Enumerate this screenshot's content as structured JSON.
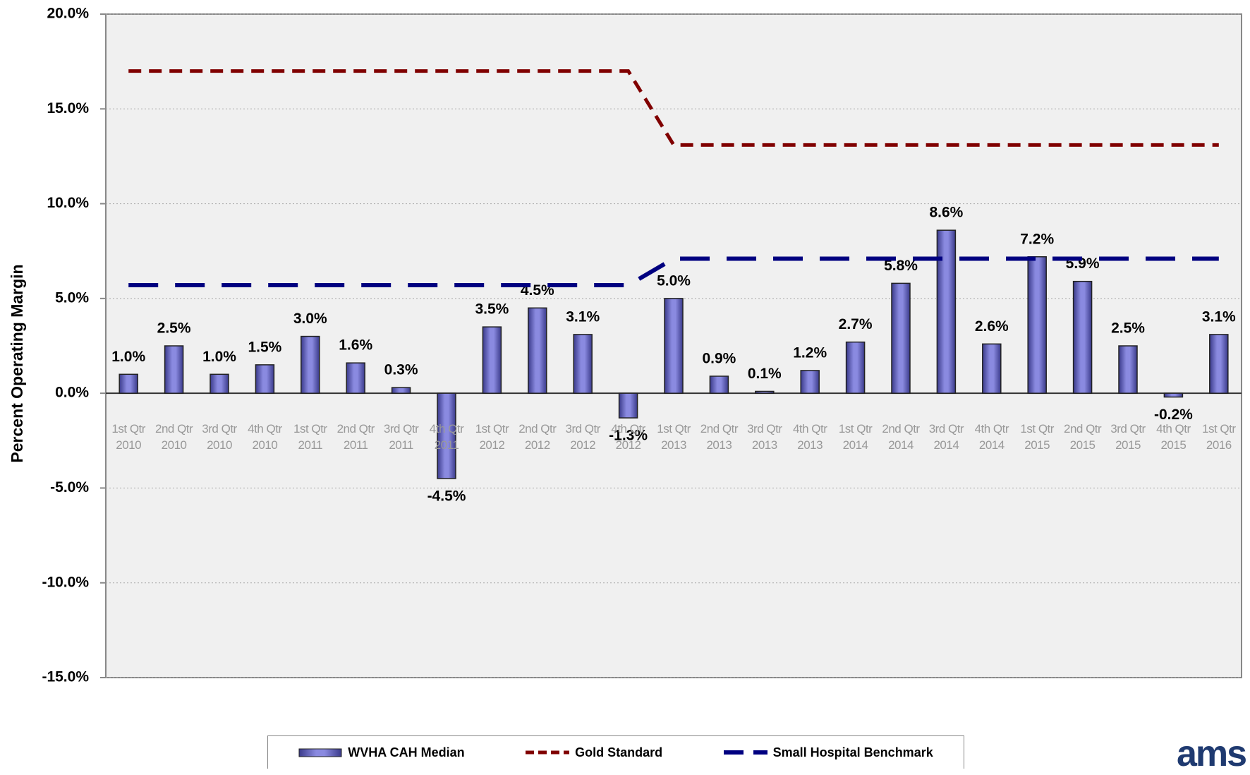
{
  "chart_data": {
    "type": "bar",
    "y_label": "Percent Operating Margin",
    "categories": [
      "1st Qtr 2010",
      "2nd Qtr 2010",
      "3rd Qtr 2010",
      "4th Qtr 2010",
      "1st Qtr 2011",
      "2nd Qtr 2011",
      "3rd Qtr 2011",
      "4th Qtr 2011",
      "1st Qtr 2012",
      "2nd Qtr 2012",
      "3rd Qtr 2012",
      "4th Qtr 2012",
      "1st Qtr 2013",
      "2nd Qtr 2013",
      "3rd Qtr 2013",
      "4th Qtr 2013",
      "1st Qtr 2014",
      "2nd Qtr 2014",
      "3rd Qtr 2014",
      "4th Qtr 2014",
      "1st Qtr 2015",
      "2nd Qtr 2015",
      "3rd Qtr 2015",
      "4th Qtr 2015",
      "1st Qtr 2016"
    ],
    "series": [
      {
        "name": "WVHA CAH Median",
        "type": "bar",
        "color": "#7b7bd8",
        "values": [
          1.0,
          2.5,
          1.0,
          1.5,
          3.0,
          1.6,
          0.3,
          -4.5,
          3.5,
          4.5,
          3.1,
          -1.3,
          5.0,
          0.9,
          0.1,
          1.2,
          2.7,
          5.8,
          8.6,
          2.6,
          7.2,
          5.9,
          2.5,
          -0.2,
          3.1
        ],
        "value_labels": [
          "1.0%",
          "2.5%",
          "1.0%",
          "1.5%",
          "3.0%",
          "1.6%",
          "0.3%",
          "-4.5%",
          "3.5%",
          "4.5%",
          "3.1%",
          "-1.3%",
          "5.0%",
          "0.9%",
          "0.1%",
          "1.2%",
          "2.7%",
          "5.8%",
          "8.6%",
          "2.6%",
          "7.2%",
          "5.9%",
          "2.5%",
          "-0.2%",
          "3.1%"
        ]
      },
      {
        "name": "Gold Standard",
        "type": "line",
        "color": "#800000",
        "values": [
          17,
          17,
          17,
          17,
          17,
          17,
          17,
          17,
          17,
          17,
          17,
          17,
          13.1,
          13.1,
          13.1,
          13.1,
          13.1,
          13.1,
          13.1,
          13.1,
          13.1,
          13.1,
          13.1,
          13.1,
          13.1
        ]
      },
      {
        "name": "Small Hospital Benchmark",
        "type": "line",
        "color": "#000080",
        "values": [
          5.7,
          5.7,
          5.7,
          5.7,
          5.7,
          5.7,
          5.7,
          5.7,
          5.7,
          5.7,
          5.7,
          5.7,
          7.1,
          7.1,
          7.1,
          7.1,
          7.1,
          7.1,
          7.1,
          7.1,
          7.1,
          7.1,
          7.1,
          7.1,
          7.1
        ]
      }
    ],
    "ylim": [
      -15,
      20
    ],
    "yticks": [
      {
        "value": -15,
        "label": "-15.0%"
      },
      {
        "value": -10,
        "label": "-10.0%"
      },
      {
        "value": -5,
        "label": "-5.0%"
      },
      {
        "value": 0,
        "label": "0.0%"
      },
      {
        "value": 5,
        "label": "5.0%"
      },
      {
        "value": 10,
        "label": "10.0%"
      },
      {
        "value": 15,
        "label": "15.0%"
      },
      {
        "value": 20,
        "label": "20.0%"
      }
    ],
    "grid": true,
    "logo": "ams"
  }
}
